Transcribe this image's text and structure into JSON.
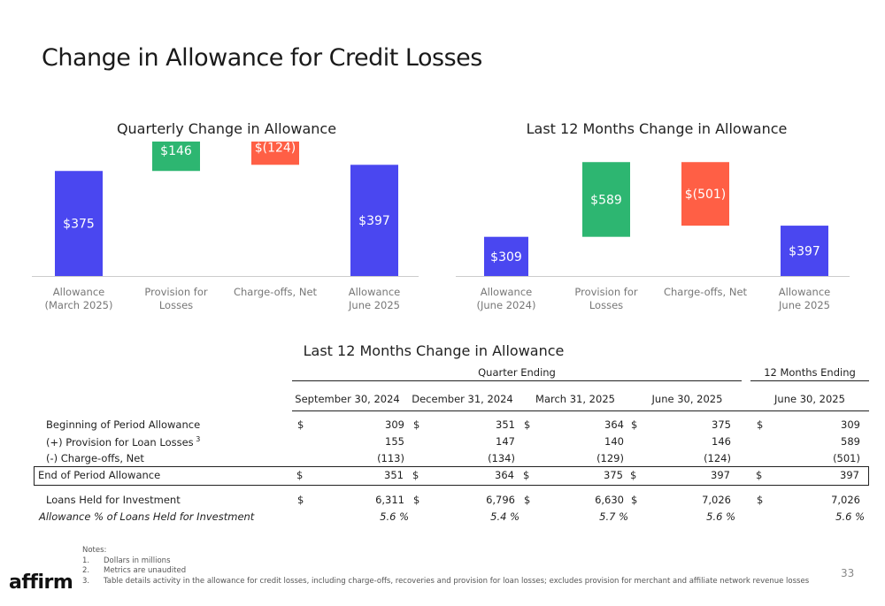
{
  "page": {
    "title": "Change in Allowance for Credit Losses",
    "page_number": "33",
    "logo_text": "affirm"
  },
  "colors": {
    "allowance": "#4a47f0",
    "provision": "#2db671",
    "chargeoff": "#ff5f45",
    "axis": "#cccccc"
  },
  "chart_data": [
    {
      "type": "bar",
      "variant": "waterfall",
      "title": "Quarterly Change in Allowance",
      "categories": [
        "Allowance\n(March 2025)",
        "Provision for\nLosses",
        "Charge-offs, Net",
        "Allowance\nJune 2025"
      ],
      "values": [
        375,
        146,
        -124,
        397
      ],
      "data_labels": [
        "$375",
        "$146",
        "$(124)",
        "$397"
      ],
      "grid": false
    },
    {
      "type": "bar",
      "variant": "waterfall",
      "title": "Last 12 Months Change in Allowance",
      "categories": [
        "Allowance\n(June 2024)",
        "Provision for\nLosses",
        "Charge-offs, Net",
        "Allowance\nJune 2025"
      ],
      "values": [
        309,
        589,
        -501,
        397
      ],
      "data_labels": [
        "$309",
        "$589",
        "$(501)",
        "$397"
      ],
      "grid": false
    }
  ],
  "table": {
    "title": "Last 12 Months Change in Allowance",
    "group_quarter": "Quarter Ending",
    "group_12m": "12 Months Ending",
    "columns": [
      "September 30, 2024",
      "December 31, 2024",
      "March 31, 2025",
      "June 30, 2025",
      "June 30, 2025"
    ],
    "rows": [
      {
        "label": "Beginning of Period Allowance",
        "values": [
          "309",
          "351",
          "364",
          "375",
          "309"
        ],
        "dollar": true
      },
      {
        "label": "(+) Provision for Loan Losses",
        "sup": "3",
        "values": [
          "155",
          "147",
          "140",
          "146",
          "589"
        ]
      },
      {
        "label": "(-) Charge-offs, Net",
        "values": [
          "(113)",
          "(134)",
          "(129)",
          "(124)",
          "(501)"
        ],
        "underline": true
      },
      {
        "label": "End of Period Allowance",
        "values": [
          "351",
          "364",
          "375",
          "397",
          "397"
        ],
        "dollar": true,
        "boxed": true
      },
      {
        "label": "Loans Held for Investment",
        "values": [
          "6,311",
          "6,796",
          "6,630",
          "7,026",
          "7,026"
        ],
        "dollar": true
      },
      {
        "label": "Allowance % of Loans Held for Investment",
        "values": [
          "5.6 %",
          "5.4 %",
          "5.7 %",
          "5.6 %",
          "5.6 %"
        ],
        "italic": true
      }
    ]
  },
  "notes": {
    "heading": "Notes:",
    "items": [
      {
        "num": "1.",
        "text": "Dollars in millions"
      },
      {
        "num": "2.",
        "text": "Metrics are unaudited"
      },
      {
        "num": "3.",
        "text": "Table details activity in the allowance for credit losses, including charge-offs, recoveries and provision for loan losses; excludes provision for merchant and affiliate network revenue losses"
      }
    ]
  }
}
